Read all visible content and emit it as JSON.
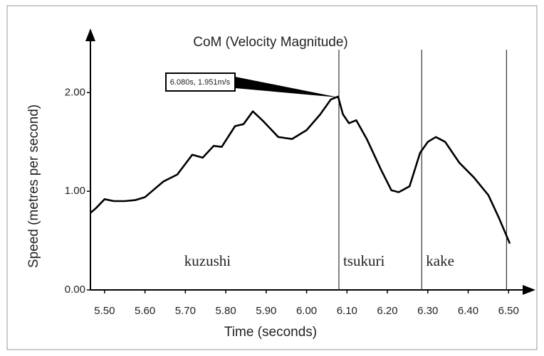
{
  "chart_data": {
    "type": "line",
    "title": "CoM (Velocity Magnitude)",
    "x_label": "Time (seconds)",
    "y_label": "Speed (metres per second)",
    "x": [
      5.465,
      5.479,
      5.5,
      5.523,
      5.55,
      5.576,
      5.6,
      5.62,
      5.646,
      5.68,
      5.717,
      5.743,
      5.77,
      5.79,
      5.823,
      5.844,
      5.867,
      5.893,
      5.93,
      5.964,
      6.0,
      6.034,
      6.06,
      6.078,
      6.09,
      6.105,
      6.123,
      6.149,
      6.184,
      6.21,
      6.228,
      6.255,
      6.281,
      6.3,
      6.32,
      6.343,
      6.378,
      6.414,
      6.45,
      6.475,
      6.503
    ],
    "values": [
      0.78,
      0.83,
      0.92,
      0.9,
      0.9,
      0.91,
      0.94,
      1.01,
      1.1,
      1.17,
      1.37,
      1.34,
      1.46,
      1.45,
      1.66,
      1.68,
      1.81,
      1.71,
      1.55,
      1.53,
      1.62,
      1.78,
      1.93,
      1.96,
      1.78,
      1.69,
      1.72,
      1.53,
      1.22,
      1.01,
      0.99,
      1.05,
      1.39,
      1.5,
      1.55,
      1.5,
      1.29,
      1.14,
      0.96,
      0.74,
      0.47
    ],
    "color": "#000000",
    "xlim": [
      5.465,
      6.563
    ],
    "ylim": [
      0,
      2.6
    ],
    "xticks": [
      {
        "value": 5.5,
        "label": "5.50"
      },
      {
        "value": 5.6,
        "label": "5.60"
      },
      {
        "value": 5.7,
        "label": "5.70"
      },
      {
        "value": 5.8,
        "label": "5.80"
      },
      {
        "value": 5.9,
        "label": "5.90"
      },
      {
        "value": 6.0,
        "label": "6.00"
      },
      {
        "value": 6.1,
        "label": "6.10"
      },
      {
        "value": 6.2,
        "label": "6.20"
      },
      {
        "value": 6.3,
        "label": "6.30"
      },
      {
        "value": 6.4,
        "label": "6.40"
      },
      {
        "value": 6.5,
        "label": "6.50"
      }
    ],
    "yticks": [
      {
        "value": 0,
        "label": "0.00"
      },
      {
        "value": 1,
        "label": "1.00"
      },
      {
        "value": 2,
        "label": "2.00"
      }
    ],
    "phase_lines": [
      6.08,
      6.285,
      6.495
    ],
    "phase_labels": [
      "kuzushi",
      "tsukuri",
      "kake"
    ],
    "annotation": {
      "text": "6.080s, 1.951m/s",
      "x": 6.08,
      "y": 1.951
    }
  }
}
